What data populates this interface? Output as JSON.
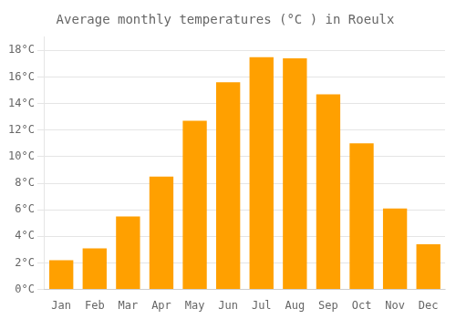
{
  "chart_data": {
    "type": "bar",
    "title": "Average monthly temperatures (°C ) in Roeulx",
    "categories": [
      "Jan",
      "Feb",
      "Mar",
      "Apr",
      "May",
      "Jun",
      "Jul",
      "Aug",
      "Sep",
      "Oct",
      "Nov",
      "Dec"
    ],
    "values": [
      2.2,
      3.1,
      5.5,
      8.5,
      12.7,
      15.6,
      17.5,
      17.4,
      14.7,
      11.0,
      6.1,
      3.4
    ],
    "color": "#FFA000",
    "ylim": [
      0,
      19
    ],
    "yticks": [
      {
        "value": 0,
        "label": "0°C"
      },
      {
        "value": 2,
        "label": "2°C"
      },
      {
        "value": 4,
        "label": "4°C"
      },
      {
        "value": 6,
        "label": "6°C"
      },
      {
        "value": 8,
        "label": "8°C"
      },
      {
        "value": 10,
        "label": "10°C"
      },
      {
        "value": 12,
        "label": "12°C"
      },
      {
        "value": 14,
        "label": "14°C"
      },
      {
        "value": 16,
        "label": "16°C"
      },
      {
        "value": 18,
        "label": "18°C"
      }
    ],
    "grid": true
  }
}
